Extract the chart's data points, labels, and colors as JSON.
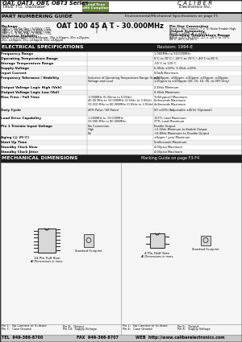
{
  "title_series": "OAT, OAT3, OBT, OBT3 Series",
  "title_subtitle": "TRUE TTL  Oscillator",
  "logo_line1": "C A L I B E R",
  "logo_line2": "Electronics Inc.",
  "rohs_line1": "Lead Free",
  "rohs_line2": "RoHS Compliant",
  "env_mech": "Environmental/Mechanical Specifications on page F5",
  "part_numbering_title": "PART NUMBERING GUIDE",
  "part_number_example": "OAT 100 45 A T - 30.000MHz",
  "elec_spec_title": "ELECTRICAL SPECIFICATIONS",
  "revision": "Revision: 1994-E",
  "rows": [
    [
      "Frequency Range",
      "",
      "1.000MHz to 50.000MHz"
    ],
    [
      "Operating Temperature Range",
      "",
      "0°C to 70°C / -20°C to 70°C / -40°C to 85°C"
    ],
    [
      "Storage Temperature Range",
      "",
      "-55°C to 125°C"
    ],
    [
      "Supply Voltage",
      "",
      "5.0Vdc ±10%, 3.3Vdc ±10%"
    ],
    [
      "Input Current",
      "",
      "50mA Maximum"
    ],
    [
      "Frequency Tolerance / Stability",
      "Inclusive of Operating Temperature Range, Supply\nVoltage and Load",
      "±100ppm, ±50ppm, ±30ppm, ±25ppm, ±20ppm,\n±15ppm to ±100ppm (20, 15, 10, 05, to 00Y Only)"
    ],
    [
      "Output Voltage Logic High (Voh)",
      "",
      "2.4Vdc Minimum"
    ],
    [
      "Output Voltage Logic Low (Vol)",
      "",
      "0.4Vdc Maximum"
    ],
    [
      "Rise Time / Fall Time",
      "1.000MHz (5.0Vmin to 5.0Vdc)\n40.00 MHz to 33.000MHz (0.5Vdc to 3.0Vdc)\n33.010 MHz to 80.000MHz (0.5Vdc to 2.0Vdc)",
      "7nS(typical) Maximum\n6nSeconds Maximum\n4nSeconds Maximum"
    ],
    [
      "Duty Cycle",
      "40% Pulse / 60 Rated",
      "50 ±10% (Adjustable ±45%) (Optional)"
    ],
    [
      "Load Drive Capability",
      "1.000MHz to 33.000MHz\n33.000 MHz to 80.000MHz",
      "15TTL Load Maximum\n3TTL Load Maximum"
    ],
    [
      "Pin 1 Tristate Input Voltage",
      "No Connection\nHigh\nNo",
      "Enable Output\n+2.3Vdc Minimum to Enable Output\n+0.8Vdc Maximum to Disable Output"
    ],
    [
      "Aging (@ 25°C)",
      "",
      "±5ppm / year Maximum"
    ],
    [
      "Start Up Time",
      "",
      "5mSeconds Maximum"
    ],
    [
      "Standby Clock Slew",
      "",
      "4.0Vpico Maximum"
    ],
    [
      "Standby Clock Jitter",
      "",
      "4.0Vpico Maximum"
    ]
  ],
  "mech_dim_title": "MECHANICAL DIMENSIONS",
  "marking_guide": "Marking Guide on page F3-F4",
  "pkg_left_labels": [
    "Pin 1:   No Connect or Tri-State",
    "Pin 7:   Case Ground"
  ],
  "pkg_left_labels2": [
    "Pin 8:   Output",
    "Pin 14:  Supply Voltage"
  ],
  "pkg_right_labels": [
    "Pin 1:   No Connect or Tri-State",
    "Pin 4:   Case Ground"
  ],
  "pkg_right_labels2": [
    "Pin 5:   Output",
    "Pin 8:   Supply Voltage"
  ],
  "tel": "TEL  949-366-8700",
  "fax": "FAX  949-366-8707",
  "web": "WEB  http://www.caliberelectronics.com",
  "all_dims": "All Dimensions in mms.",
  "standard_footprint": "Standard Footprint",
  "bg_white": "#ffffff",
  "bg_gray_header": "#c0c0c0",
  "bg_dark_header": "#1a1a1a",
  "row_even": "#ffffff",
  "row_odd": "#f0f0f0",
  "border_color": "#888888",
  "footer_bg": "#c8c8c8"
}
